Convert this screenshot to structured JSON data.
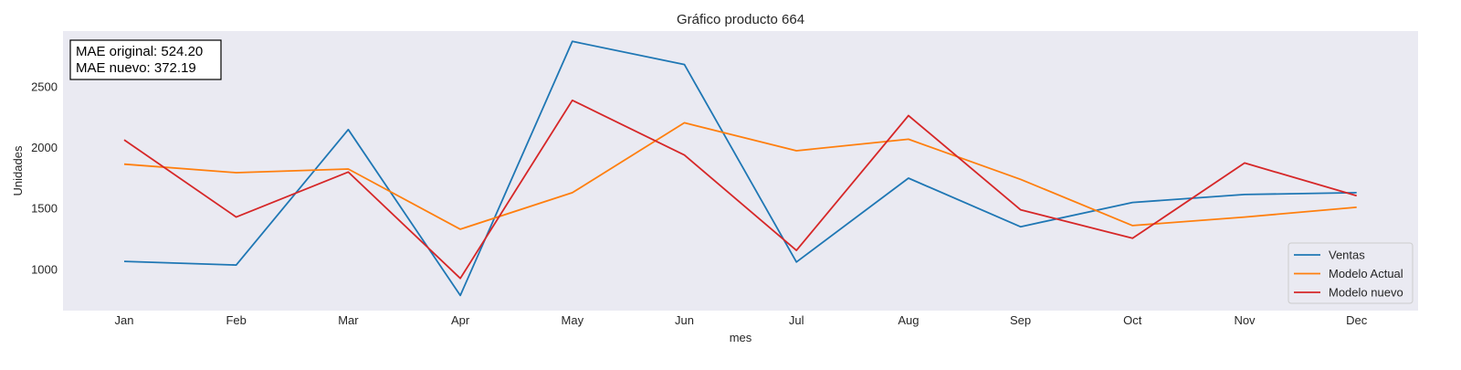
{
  "chart_data": {
    "type": "line",
    "title": "Gráfico producto 664",
    "xlabel": "mes",
    "ylabel": "Unidades",
    "categories": [
      "Jan",
      "Feb",
      "Mar",
      "Apr",
      "May",
      "Jun",
      "Jul",
      "Aug",
      "Sep",
      "Oct",
      "Nov",
      "Dec"
    ],
    "ylim": [
      660,
      2960
    ],
    "yticks": [
      1000,
      1500,
      2000,
      2500
    ],
    "grid": false,
    "legend_position": "lower right",
    "series": [
      {
        "name": "Ventas",
        "color": "#1f77b4",
        "values": [
          1065,
          1035,
          2150,
          785,
          2875,
          2685,
          1060,
          1750,
          1350,
          1550,
          1615,
          1630
        ]
      },
      {
        "name": "Modelo Actual",
        "color": "#ff7f0e",
        "values": [
          1865,
          1795,
          1825,
          1330,
          1630,
          2205,
          1975,
          2070,
          1740,
          1360,
          1430,
          1510
        ]
      },
      {
        "name": "Modelo nuevo",
        "color": "#d62728",
        "values": [
          2065,
          1430,
          1800,
          925,
          2390,
          1940,
          1155,
          2265,
          1490,
          1255,
          1875,
          1605
        ]
      }
    ],
    "annotation": {
      "lines": [
        "MAE original: 524.20",
        "MAE nuevo: 372.19"
      ]
    }
  },
  "colors": {
    "plot_background": "#eaeaf2"
  }
}
